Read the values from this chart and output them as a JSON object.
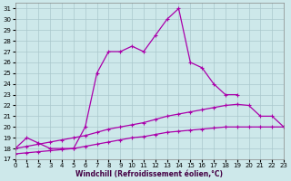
{
  "xlabel": "Windchill (Refroidissement éolien,°C)",
  "xlim": [
    0,
    23
  ],
  "ylim": [
    17,
    31.5
  ],
  "xticks": [
    0,
    1,
    2,
    3,
    4,
    5,
    6,
    7,
    8,
    9,
    10,
    11,
    12,
    13,
    14,
    15,
    16,
    17,
    18,
    19,
    20,
    21,
    22,
    23
  ],
  "yticks": [
    17,
    18,
    19,
    20,
    21,
    22,
    23,
    24,
    25,
    26,
    27,
    28,
    29,
    30,
    31
  ],
  "background_color": "#cde8ea",
  "grid_color": "#aac8cc",
  "line_color": "#aa00aa",
  "curve1": {
    "x": [
      0,
      1,
      2,
      3,
      4,
      5,
      6,
      7,
      8,
      9,
      10,
      11,
      12,
      13,
      14,
      15,
      16,
      17,
      18,
      19
    ],
    "y": [
      18,
      19,
      18.5,
      18,
      18,
      18,
      20,
      25,
      27,
      27,
      27.5,
      27,
      28.5,
      30,
      31,
      26,
      25.5,
      24,
      23,
      23
    ]
  },
  "curve2": {
    "x": [
      0,
      1,
      2,
      3,
      4,
      5,
      6,
      7,
      8,
      9,
      10,
      11,
      12,
      13,
      14,
      15,
      16,
      17,
      18,
      19,
      20,
      21,
      22,
      23
    ],
    "y": [
      18,
      18.2,
      18.4,
      18.6,
      18.8,
      19,
      19.2,
      19.5,
      19.8,
      20,
      20.2,
      20.4,
      20.7,
      21,
      21.2,
      21.4,
      21.6,
      21.8,
      22,
      22.1,
      22,
      21,
      21,
      20
    ]
  },
  "curve3": {
    "x": [
      0,
      1,
      2,
      3,
      4,
      5,
      6,
      7,
      8,
      9,
      10,
      11,
      12,
      13,
      14,
      15,
      16,
      17,
      18,
      19,
      20,
      21,
      22,
      23
    ],
    "y": [
      17.5,
      17.6,
      17.7,
      17.8,
      17.9,
      18,
      18.2,
      18.4,
      18.6,
      18.8,
      19,
      19.1,
      19.3,
      19.5,
      19.6,
      19.7,
      19.8,
      19.9,
      20,
      20,
      20,
      20,
      20,
      20
    ]
  }
}
